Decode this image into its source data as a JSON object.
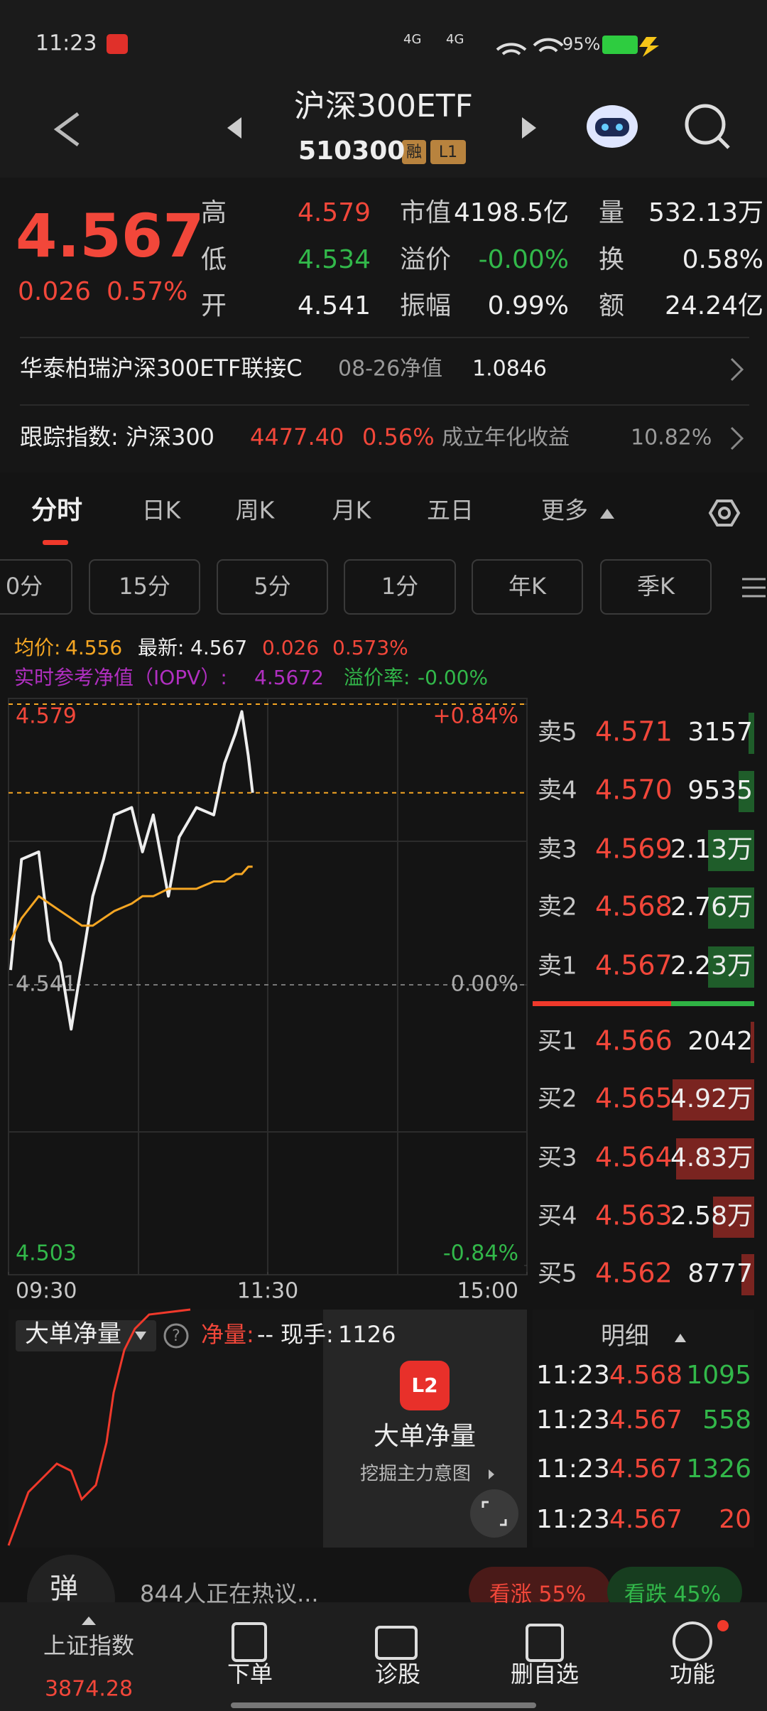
{
  "status_bar": {
    "time": "11:23",
    "network": [
      "4G",
      "4G"
    ],
    "battery": "95%"
  },
  "header": {
    "title": "沪深300ETF",
    "code": "510300",
    "badges": [
      "融",
      "L1"
    ]
  },
  "quote": {
    "price": "4.567",
    "change": "0.026",
    "change_pct": "0.57%",
    "stats": [
      [
        "高",
        "4.579",
        "市值",
        "4198.5亿",
        "量",
        "532.13万"
      ],
      [
        "低",
        "4.534",
        "溢价",
        "-0.00%",
        "换",
        "0.58%"
      ],
      [
        "开",
        "4.541",
        "振幅",
        "0.99%",
        "额",
        "24.24亿"
      ]
    ]
  },
  "linked_fund": {
    "name": "华泰柏瑞沪深300ETF联接C",
    "date_label": "08-26净值",
    "nav": "1.0846"
  },
  "tracking": {
    "label": "跟踪指数: 沪深300",
    "value": "4477.40",
    "change_pct": "0.56%",
    "annual_label": "成立年化收益",
    "annual_value": "10.82%"
  },
  "tabs": [
    "分时",
    "日K",
    "周K",
    "月K",
    "五日",
    "更多"
  ],
  "periods": [
    "0分",
    "15分",
    "5分",
    "1分",
    "年K",
    "季K"
  ],
  "info": {
    "avg_label": "均价:",
    "avg": "4.556",
    "latest_label": "最新:",
    "latest": "4.567",
    "change": "0.026",
    "change_pct": "0.573%",
    "iopv_label": "实时参考净值（IOPV）:",
    "iopv": "4.5672",
    "premium_label": "溢价率:",
    "premium": "-0.00%"
  },
  "chart_data": {
    "type": "line",
    "x": [
      1,
      6,
      14,
      19,
      24,
      29,
      34,
      39,
      44,
      49,
      57,
      62,
      67,
      74,
      79,
      87,
      95,
      100,
      105,
      108,
      111,
      113
    ],
    "series": [
      {
        "color": "#eeeeee",
        "values": [
          4.543,
          4.558,
          4.559,
          4.547,
          4.544,
          4.535,
          4.544,
          4.553,
          4.558,
          4.564,
          4.565,
          4.559,
          4.564,
          4.553,
          4.561,
          4.565,
          4.564,
          4.571,
          4.575,
          4.578,
          4.572,
          4.567
        ]
      },
      {
        "color": "#f5a623",
        "values": [
          4.547,
          4.55,
          4.553,
          4.552,
          4.551,
          4.55,
          4.549,
          4.549,
          4.55,
          4.551,
          4.552,
          4.553,
          4.553,
          4.554,
          4.554,
          4.554,
          4.555,
          4.555,
          4.556,
          4.556,
          4.557,
          4.557
        ]
      }
    ],
    "xlim": [
      0,
      240
    ],
    "xticks": [
      {
        "value": 0,
        "label": "09:30"
      },
      {
        "value": 120,
        "label": "11:30"
      },
      {
        "value": 240,
        "label": "15:00"
      }
    ],
    "ylim": [
      4.503,
      4.579
    ],
    "yticks": [
      4.503,
      4.541,
      4.579
    ],
    "y2lim": [
      -0.84,
      0.84
    ],
    "y2ticks": [
      {
        "value": -0.84,
        "label": "-0.84%"
      },
      {
        "value": 0,
        "label": "0.00%"
      },
      {
        "value": 0.84,
        "label": "+0.84%"
      }
    ]
  },
  "order_book": {
    "asks": [
      [
        "卖5",
        "4.571",
        "3157"
      ],
      [
        "卖4",
        "4.570",
        "9535"
      ],
      [
        "卖3",
        "4.569",
        "2.13万"
      ],
      [
        "卖2",
        "4.568",
        "2.76万"
      ],
      [
        "卖1",
        "4.567",
        "2.23万"
      ]
    ],
    "bids": [
      [
        "买1",
        "4.566",
        "2042"
      ],
      [
        "买2",
        "4.565",
        "4.92万"
      ],
      [
        "买3",
        "4.564",
        "4.83万"
      ],
      [
        "买4",
        "4.563",
        "2.58万"
      ],
      [
        "买5",
        "4.562",
        "8777"
      ]
    ]
  },
  "net_panel": {
    "selector": "大单净量",
    "net_label": "净量:",
    "net_value": "--",
    "hand_label": "现手:",
    "hand_value": "1126",
    "promo_badge": "L2",
    "promo_title": "大单净量",
    "promo_sub": "挖掘主力意图"
  },
  "trades": {
    "title": "明细",
    "rows": [
      [
        "11:23",
        "4.568",
        "1095"
      ],
      [
        "11:23",
        "4.567",
        "558"
      ],
      [
        "11:23",
        "4.567",
        "1326"
      ],
      [
        "11:23",
        "4.567",
        "20"
      ]
    ]
  },
  "discussion": {
    "avatar": "弹",
    "text": "844人正在热议...",
    "bull": "看涨 55%",
    "bear": "看跌 45%"
  },
  "nav": [
    {
      "label": "上证指数",
      "value": "3874.28"
    },
    {
      "label": "下单"
    },
    {
      "label": "诊股"
    },
    {
      "label": "删自选"
    },
    {
      "label": "功能"
    }
  ]
}
